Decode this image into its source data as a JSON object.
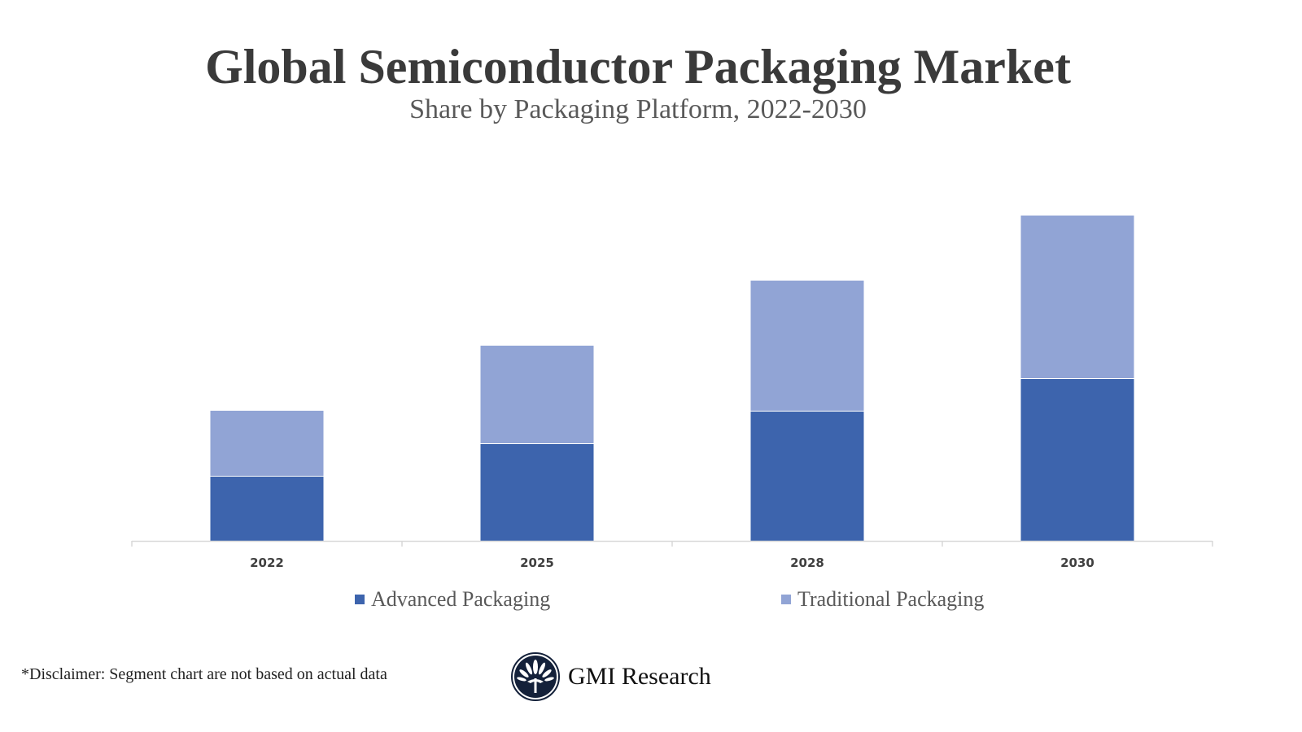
{
  "chart_data": {
    "type": "bar",
    "stacked": true,
    "title": "Global Semiconductor Packaging Market",
    "subtitle": "Share by Packaging Platform, 2022-2030",
    "categories": [
      "2022",
      "2025",
      "2028",
      "2030"
    ],
    "series": [
      {
        "name": "Advanced Packaging",
        "values": [
          2,
          3,
          4,
          5
        ],
        "color": "#3d64ad"
      },
      {
        "name": "Traditional Packaging",
        "values": [
          2,
          3,
          4,
          5
        ],
        "color": "#91a4d5"
      }
    ],
    "ylim": [
      0,
      10
    ],
    "grid": false,
    "y_axis_shown": false,
    "legend_placement": "bottom"
  },
  "footer": {
    "disclaimer": "*Disclaimer:  Segment chart are not based on actual data",
    "logo_text": "GMI Research"
  }
}
